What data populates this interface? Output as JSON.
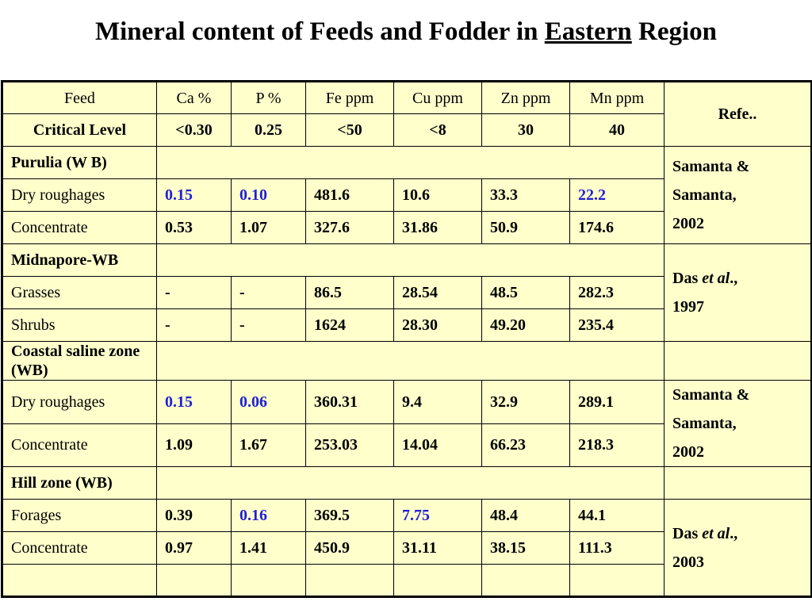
{
  "title": {
    "prefix": "Mineral content of Feeds and Fodder in ",
    "underlined": "Eastern",
    "suffix": " Region"
  },
  "header": [
    "Feed",
    "Ca %",
    "P %",
    "Fe ppm",
    "Cu ppm",
    "Zn ppm",
    "Mn ppm",
    "Refe.."
  ],
  "critical": [
    "Critical Level",
    "<0.30",
    "0.25",
    "<50",
    "<8",
    "30",
    "40"
  ],
  "groups": {
    "purulia": "Purulia (W B)",
    "midnapore": "Midnapore-WB",
    "coastal": "Coastal saline zone (WB)",
    "hill": "Hill zone (WB)"
  },
  "rows": {
    "r1": [
      "Dry roughages",
      "0.15",
      "0.10",
      "481.6",
      "10.6",
      "33.3",
      "22.2"
    ],
    "r2": [
      "Concentrate",
      "0.53",
      "1.07",
      "327.6",
      "31.86",
      "50.9",
      "174.6"
    ],
    "r3": [
      "Grasses",
      "-",
      "-",
      "86.5",
      "28.54",
      "48.5",
      "282.3"
    ],
    "r4": [
      "Shrubs",
      "-",
      "-",
      "1624",
      "28.30",
      "49.20",
      "235.4"
    ],
    "r5": [
      "Dry roughages",
      "0.15",
      "0.06",
      "360.31",
      "9.4",
      "32.9",
      "289.1"
    ],
    "r6": [
      "Concentrate",
      "1.09",
      "1.67",
      "253.03",
      "14.04",
      "66.23",
      "218.3"
    ],
    "r7": [
      "Forages",
      "0.39",
      "0.16",
      "369.5",
      "7.75",
      "48.4",
      "44.1"
    ],
    "r8": [
      "Concentrate",
      "0.97",
      "1.41",
      "450.9",
      "31.11",
      "38.15",
      "111.3"
    ]
  },
  "refs": {
    "ref1": [
      "Samanta &",
      "Samanta,",
      "2002"
    ],
    "ref2": {
      "author": "Das ",
      "etal": "et al",
      "after": ".,",
      "year": "1997"
    },
    "ref3": [
      "Samanta &",
      "Samanta,",
      "2002"
    ],
    "ref4": {
      "author": "Das ",
      "etal": "et al",
      "after": ".,",
      "year": "2003"
    }
  },
  "colors": {
    "table_bg": "#FFFFCC",
    "highlight": "#1F1FD6"
  }
}
